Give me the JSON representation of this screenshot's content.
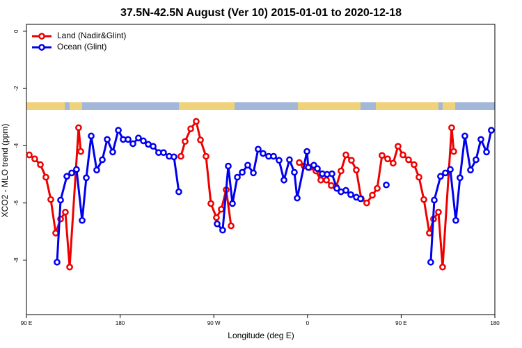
{
  "chart_data": {
    "type": "line",
    "title": "37.5N-42.5N August (Ver 10)   2015-01-01 to 2020-12-18",
    "x_label": "Longitude (deg E)",
    "y_label": "XCO2 - MLO trend (ppm)",
    "xlim": [
      90,
      540
    ],
    "ylim": [
      -9.9,
      0.24
    ],
    "xticks": [
      {
        "value": 90,
        "label": "90 E"
      },
      {
        "value": 180,
        "label": "180"
      },
      {
        "value": 270,
        "label": "90 W"
      },
      {
        "value": 360,
        "label": "0"
      },
      {
        "value": 450,
        "label": "90 E"
      },
      {
        "value": 540,
        "label": "180"
      }
    ],
    "yticks": [
      0,
      -2,
      -4,
      -6,
      -8
    ],
    "legend": "top-left",
    "series": [
      {
        "name": "Land (Nadir&Glint)",
        "color": "#ee0000",
        "x": [
          92.7,
          98.0,
          103.4,
          108.7,
          113.4,
          118.1,
          122.8,
          127.4,
          131.5,
          140.1,
          142.2,
          null,
          238.4,
          242.4,
          247.8,
          253.1,
          257.2,
          262.5,
          267.2,
          272.5,
          277.2,
          281.9,
          286.6,
          null,
          352.1,
          356.8,
          362.1,
          368.1,
          372.8,
          378.2,
          382.8,
          387.5,
          392.2,
          396.9,
          402.2,
          406.9,
          411.6,
          416.9,
          422.3,
          427.0,
          431.6,
          437.0,
          442.3,
          447.0,
          451.7,
          457.1,
          462.4,
          467.1,
          471.8,
          477.1,
          481.1,
          485.8,
          489.8,
          498.5,
          500.5
        ],
        "values": [
          -4.32,
          -4.46,
          -4.66,
          -5.1,
          -5.88,
          -7.05,
          -6.56,
          -6.32,
          -8.24,
          -3.37,
          -4.2,
          null,
          -4.37,
          -3.85,
          -3.41,
          -3.15,
          -3.8,
          -4.37,
          -6.02,
          -6.51,
          -6.22,
          -5.54,
          -6.8,
          null,
          -4.59,
          -4.71,
          -4.76,
          -4.88,
          -5.2,
          -5.2,
          -5.39,
          -5.44,
          -4.88,
          -4.32,
          -4.51,
          -4.85,
          -5.85,
          -6.0,
          -5.73,
          -5.49,
          -4.34,
          -4.46,
          -4.61,
          -4.02,
          -4.32,
          -4.49,
          -4.66,
          -5.1,
          -5.88,
          -7.05,
          -6.56,
          -6.32,
          -8.24,
          -3.37,
          -4.2
        ]
      },
      {
        "name": "Ocean (Glint)",
        "color": "#0000ee",
        "x": [
          119.4,
          122.8,
          128.8,
          133.5,
          138.1,
          143.5,
          147.5,
          152.2,
          157.5,
          162.9,
          167.6,
          172.9,
          178.3,
          182.9,
          187.6,
          192.3,
          197.6,
          202.3,
          207.0,
          211.7,
          217.0,
          221.7,
          227.1,
          231.7,
          236.4,
          null,
          273.2,
          278.5,
          283.9,
          287.9,
          292.6,
          297.3,
          302.6,
          308.0,
          312.6,
          317.3,
          322.7,
          327.4,
          332.7,
          337.4,
          342.7,
          347.4,
          350.1,
          359.5,
          360.8,
          366.1,
          369.5,
          374.2,
          378.8,
          383.5,
          388.2,
          392.2,
          396.9,
          401.6,
          406.9,
          411.0,
          null,
          435.7,
          null,
          478.4,
          481.8,
          487.8,
          492.5,
          497.2,
          502.5,
          506.5,
          511.2,
          516.6,
          521.9,
          526.6,
          532.0,
          536.6
        ],
        "values": [
          -8.07,
          -5.9,
          -5.07,
          -4.95,
          -4.83,
          -6.61,
          -5.12,
          -3.66,
          -4.85,
          -4.49,
          -3.78,
          -4.22,
          -3.46,
          -3.78,
          -3.78,
          -3.93,
          -3.73,
          -3.83,
          -3.95,
          -4.02,
          -4.24,
          -4.24,
          -4.37,
          -4.39,
          -5.61,
          null,
          -6.73,
          -6.95,
          -4.71,
          -6.02,
          -5.1,
          -4.93,
          -4.68,
          -4.95,
          -4.12,
          -4.27,
          -4.37,
          -4.37,
          -4.51,
          -5.2,
          -4.49,
          -4.93,
          -5.83,
          -4.2,
          -4.76,
          -4.68,
          -4.8,
          -4.98,
          -5.0,
          -4.98,
          -5.49,
          -5.61,
          -5.56,
          -5.71,
          -5.8,
          -5.85,
          null,
          -5.37,
          null,
          -8.07,
          -5.9,
          -5.07,
          -4.95,
          -4.83,
          -6.61,
          -5.12,
          -3.66,
          -4.85,
          -4.49,
          -3.78,
          -4.22,
          -3.46
        ]
      }
    ]
  }
}
